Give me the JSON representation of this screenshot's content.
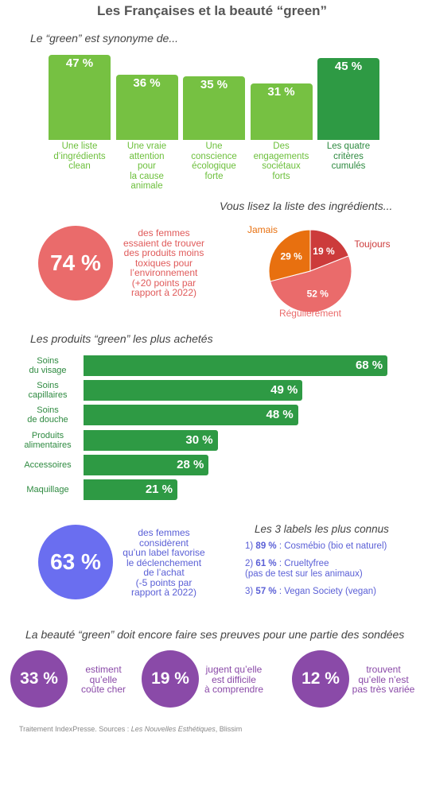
{
  "title": "Les Françaises et la beauté “green”",
  "section1": {
    "heading": "Le “green” est synonyme de...",
    "chart_data": {
      "type": "bar",
      "categories": [
        "Une liste d’ingrédients clean",
        "Une vraie attention pour la cause animale",
        "Une conscience écologique forte",
        "Des engagements sociétaux forts",
        "Les quatre critères cumulés"
      ],
      "values": [
        47,
        36,
        35,
        31,
        45
      ],
      "value_labels": [
        "47 %",
        "36 %",
        "35 %",
        "31 %",
        "45 %"
      ],
      "category_lines": [
        [
          "Une liste",
          "d’ingrédients",
          "clean"
        ],
        [
          "Une vraie",
          "attention",
          "pour",
          "la cause",
          "animale"
        ],
        [
          "Une",
          "conscience",
          "écologique",
          "forte"
        ],
        [
          "Des",
          "engagements",
          "sociétaux",
          "forts"
        ],
        [
          "Les quatre",
          "critères",
          "cumulés"
        ]
      ],
      "colors": [
        "#76c142",
        "#76c142",
        "#76c142",
        "#76c142",
        "#2e9a44"
      ]
    }
  },
  "stat74": {
    "value": "74 %",
    "lines": [
      "des femmes",
      "essaient de trouver",
      "des produits moins",
      "toxiques pour",
      "l’environnement",
      "(+20 points par",
      "rapport à 2022)"
    ],
    "color": "#ea6b6b"
  },
  "pie": {
    "heading": "Vous lisez la liste des ingrédients...",
    "chart_data": {
      "type": "pie",
      "labels": [
        "Toujours",
        "Régulièrement",
        "Jamais"
      ],
      "values": [
        19,
        52,
        29
      ],
      "value_labels": [
        "19 %",
        "52 %",
        "29 %"
      ],
      "colors": [
        "#cc3b3b",
        "#ea6b6b",
        "#e8700f"
      ]
    }
  },
  "section2": {
    "heading": "Les produits “green” les plus achetés",
    "chart_data": {
      "type": "bar",
      "orientation": "horizontal",
      "categories": [
        "Soins du visage",
        "Soins capillaires",
        "Soins de douche",
        "Produits alimentaires",
        "Accessoires",
        "Maquillage"
      ],
      "category_lines": [
        [
          "Soins",
          "du visage"
        ],
        [
          "Soins",
          "capillaires"
        ],
        [
          "Soins",
          "de douche"
        ],
        [
          "Produits",
          "alimentaires"
        ],
        [
          "Accessoires"
        ],
        [
          "Maquillage"
        ]
      ],
      "values": [
        68,
        49,
        48,
        30,
        28,
        21
      ],
      "value_labels": [
        "68 %",
        "49 %",
        "48 %",
        "30 %",
        "28 %",
        "21 %"
      ],
      "color": "#2e9a44"
    }
  },
  "stat63": {
    "value": "63 %",
    "lines": [
      "des femmes",
      "considèrent",
      "qu’un label favorise",
      "le déclenchement",
      "de l’achat",
      "(-5 points par",
      "rapport à 2022)"
    ],
    "color": "#6a6ef0"
  },
  "labels": {
    "heading": "Les 3 labels les plus connus",
    "items": [
      {
        "rank": "1)",
        "pct": "89 %",
        "text": " : Cosmébio (bio et naturel)",
        "text2": ""
      },
      {
        "rank": "2)",
        "pct": "61 %",
        "text": " : Crueltyfree",
        "text2": "(pas de test sur les animaux)"
      },
      {
        "rank": "3)",
        "pct": "57 %",
        "text": " : Vegan Society (vegan)",
        "text2": ""
      }
    ]
  },
  "section3": {
    "heading": "La beauté “green” doit encore faire ses preuves pour une partie des sondées",
    "color": "#8a4aa8",
    "items": [
      {
        "value": "33 %",
        "lines": [
          "estiment",
          "qu’elle",
          "coûte cher"
        ]
      },
      {
        "value": "19 %",
        "lines": [
          "jugent qu’elle",
          "est difficile",
          "à comprendre"
        ]
      },
      {
        "value": "12 %",
        "lines": [
          "trouvent",
          "qu’elle n’est",
          "pas très variée"
        ]
      }
    ]
  },
  "footer": {
    "prefix": "Traitement IndexPresse. Sources : ",
    "source_italic": "Les Nouvelles Esthétiques",
    "suffix": ", Blissim"
  }
}
